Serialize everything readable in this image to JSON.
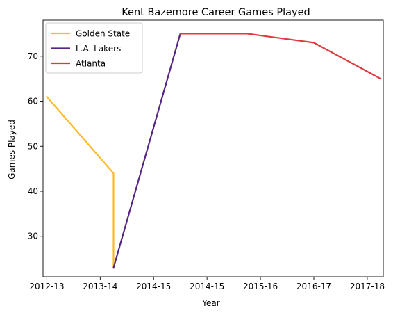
{
  "chart_data": {
    "type": "line",
    "title": "Kent Bazemore Career Games Played",
    "xlabel": "Year",
    "ylabel": "Games Played",
    "x_tick_labels": [
      "2012-13",
      "2013-14",
      "2014-15",
      "2014-15",
      "2015-16",
      "2016-17",
      "2017-18"
    ],
    "xlim": [
      -0.07,
      6.3
    ],
    "ylim": [
      21,
      78
    ],
    "y_ticks": [
      30,
      40,
      50,
      60,
      70
    ],
    "grid": false,
    "legend_position": "upper-left",
    "series": [
      {
        "name": "Golden State",
        "color": "#FDB927",
        "points": [
          {
            "x": 0,
            "y": 61
          },
          {
            "x": 1.25,
            "y": 44
          },
          {
            "x": 1.25,
            "y": 23
          }
        ]
      },
      {
        "name": "L.A. Lakers",
        "color": "#552583",
        "points": [
          {
            "x": 1.25,
            "y": 23
          },
          {
            "x": 2.5,
            "y": 75
          }
        ]
      },
      {
        "name": "Atlanta",
        "color": "#E03A3E",
        "points": [
          {
            "x": 2.5,
            "y": 75
          },
          {
            "x": 3.75,
            "y": 75
          },
          {
            "x": 5,
            "y": 73
          },
          {
            "x": 6.25,
            "y": 65
          }
        ]
      }
    ]
  }
}
